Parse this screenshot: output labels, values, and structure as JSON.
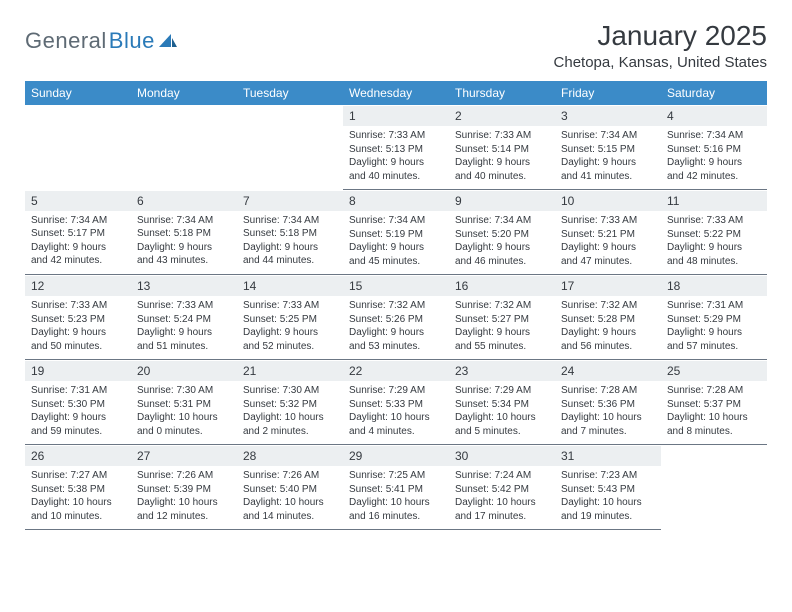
{
  "brand": {
    "text1": "General",
    "text2": "Blue"
  },
  "title": "January 2025",
  "location": "Chetopa, Kansas, United States",
  "colors": {
    "header_bg": "#3b8bc8",
    "header_text": "#ffffff",
    "daynum_bg": "#eceff1",
    "text": "#353a40",
    "rule": "#6b7684",
    "logo_gray": "#5e6a74",
    "logo_blue": "#2a7ab8"
  },
  "day_headers": [
    "Sunday",
    "Monday",
    "Tuesday",
    "Wednesday",
    "Thursday",
    "Friday",
    "Saturday"
  ],
  "weeks": [
    [
      null,
      null,
      null,
      {
        "n": "1",
        "sr": "7:33 AM",
        "ss": "5:13 PM",
        "dl": "9 hours and 40 minutes."
      },
      {
        "n": "2",
        "sr": "7:33 AM",
        "ss": "5:14 PM",
        "dl": "9 hours and 40 minutes."
      },
      {
        "n": "3",
        "sr": "7:34 AM",
        "ss": "5:15 PM",
        "dl": "9 hours and 41 minutes."
      },
      {
        "n": "4",
        "sr": "7:34 AM",
        "ss": "5:16 PM",
        "dl": "9 hours and 42 minutes."
      }
    ],
    [
      {
        "n": "5",
        "sr": "7:34 AM",
        "ss": "5:17 PM",
        "dl": "9 hours and 42 minutes."
      },
      {
        "n": "6",
        "sr": "7:34 AM",
        "ss": "5:18 PM",
        "dl": "9 hours and 43 minutes."
      },
      {
        "n": "7",
        "sr": "7:34 AM",
        "ss": "5:18 PM",
        "dl": "9 hours and 44 minutes."
      },
      {
        "n": "8",
        "sr": "7:34 AM",
        "ss": "5:19 PM",
        "dl": "9 hours and 45 minutes."
      },
      {
        "n": "9",
        "sr": "7:34 AM",
        "ss": "5:20 PM",
        "dl": "9 hours and 46 minutes."
      },
      {
        "n": "10",
        "sr": "7:33 AM",
        "ss": "5:21 PM",
        "dl": "9 hours and 47 minutes."
      },
      {
        "n": "11",
        "sr": "7:33 AM",
        "ss": "5:22 PM",
        "dl": "9 hours and 48 minutes."
      }
    ],
    [
      {
        "n": "12",
        "sr": "7:33 AM",
        "ss": "5:23 PM",
        "dl": "9 hours and 50 minutes."
      },
      {
        "n": "13",
        "sr": "7:33 AM",
        "ss": "5:24 PM",
        "dl": "9 hours and 51 minutes."
      },
      {
        "n": "14",
        "sr": "7:33 AM",
        "ss": "5:25 PM",
        "dl": "9 hours and 52 minutes."
      },
      {
        "n": "15",
        "sr": "7:32 AM",
        "ss": "5:26 PM",
        "dl": "9 hours and 53 minutes."
      },
      {
        "n": "16",
        "sr": "7:32 AM",
        "ss": "5:27 PM",
        "dl": "9 hours and 55 minutes."
      },
      {
        "n": "17",
        "sr": "7:32 AM",
        "ss": "5:28 PM",
        "dl": "9 hours and 56 minutes."
      },
      {
        "n": "18",
        "sr": "7:31 AM",
        "ss": "5:29 PM",
        "dl": "9 hours and 57 minutes."
      }
    ],
    [
      {
        "n": "19",
        "sr": "7:31 AM",
        "ss": "5:30 PM",
        "dl": "9 hours and 59 minutes."
      },
      {
        "n": "20",
        "sr": "7:30 AM",
        "ss": "5:31 PM",
        "dl": "10 hours and 0 minutes."
      },
      {
        "n": "21",
        "sr": "7:30 AM",
        "ss": "5:32 PM",
        "dl": "10 hours and 2 minutes."
      },
      {
        "n": "22",
        "sr": "7:29 AM",
        "ss": "5:33 PM",
        "dl": "10 hours and 4 minutes."
      },
      {
        "n": "23",
        "sr": "7:29 AM",
        "ss": "5:34 PM",
        "dl": "10 hours and 5 minutes."
      },
      {
        "n": "24",
        "sr": "7:28 AM",
        "ss": "5:36 PM",
        "dl": "10 hours and 7 minutes."
      },
      {
        "n": "25",
        "sr": "7:28 AM",
        "ss": "5:37 PM",
        "dl": "10 hours and 8 minutes."
      }
    ],
    [
      {
        "n": "26",
        "sr": "7:27 AM",
        "ss": "5:38 PM",
        "dl": "10 hours and 10 minutes."
      },
      {
        "n": "27",
        "sr": "7:26 AM",
        "ss": "5:39 PM",
        "dl": "10 hours and 12 minutes."
      },
      {
        "n": "28",
        "sr": "7:26 AM",
        "ss": "5:40 PM",
        "dl": "10 hours and 14 minutes."
      },
      {
        "n": "29",
        "sr": "7:25 AM",
        "ss": "5:41 PM",
        "dl": "10 hours and 16 minutes."
      },
      {
        "n": "30",
        "sr": "7:24 AM",
        "ss": "5:42 PM",
        "dl": "10 hours and 17 minutes."
      },
      {
        "n": "31",
        "sr": "7:23 AM",
        "ss": "5:43 PM",
        "dl": "10 hours and 19 minutes."
      },
      null
    ]
  ],
  "labels": {
    "sunrise": "Sunrise:",
    "sunset": "Sunset:",
    "daylight": "Daylight:"
  }
}
